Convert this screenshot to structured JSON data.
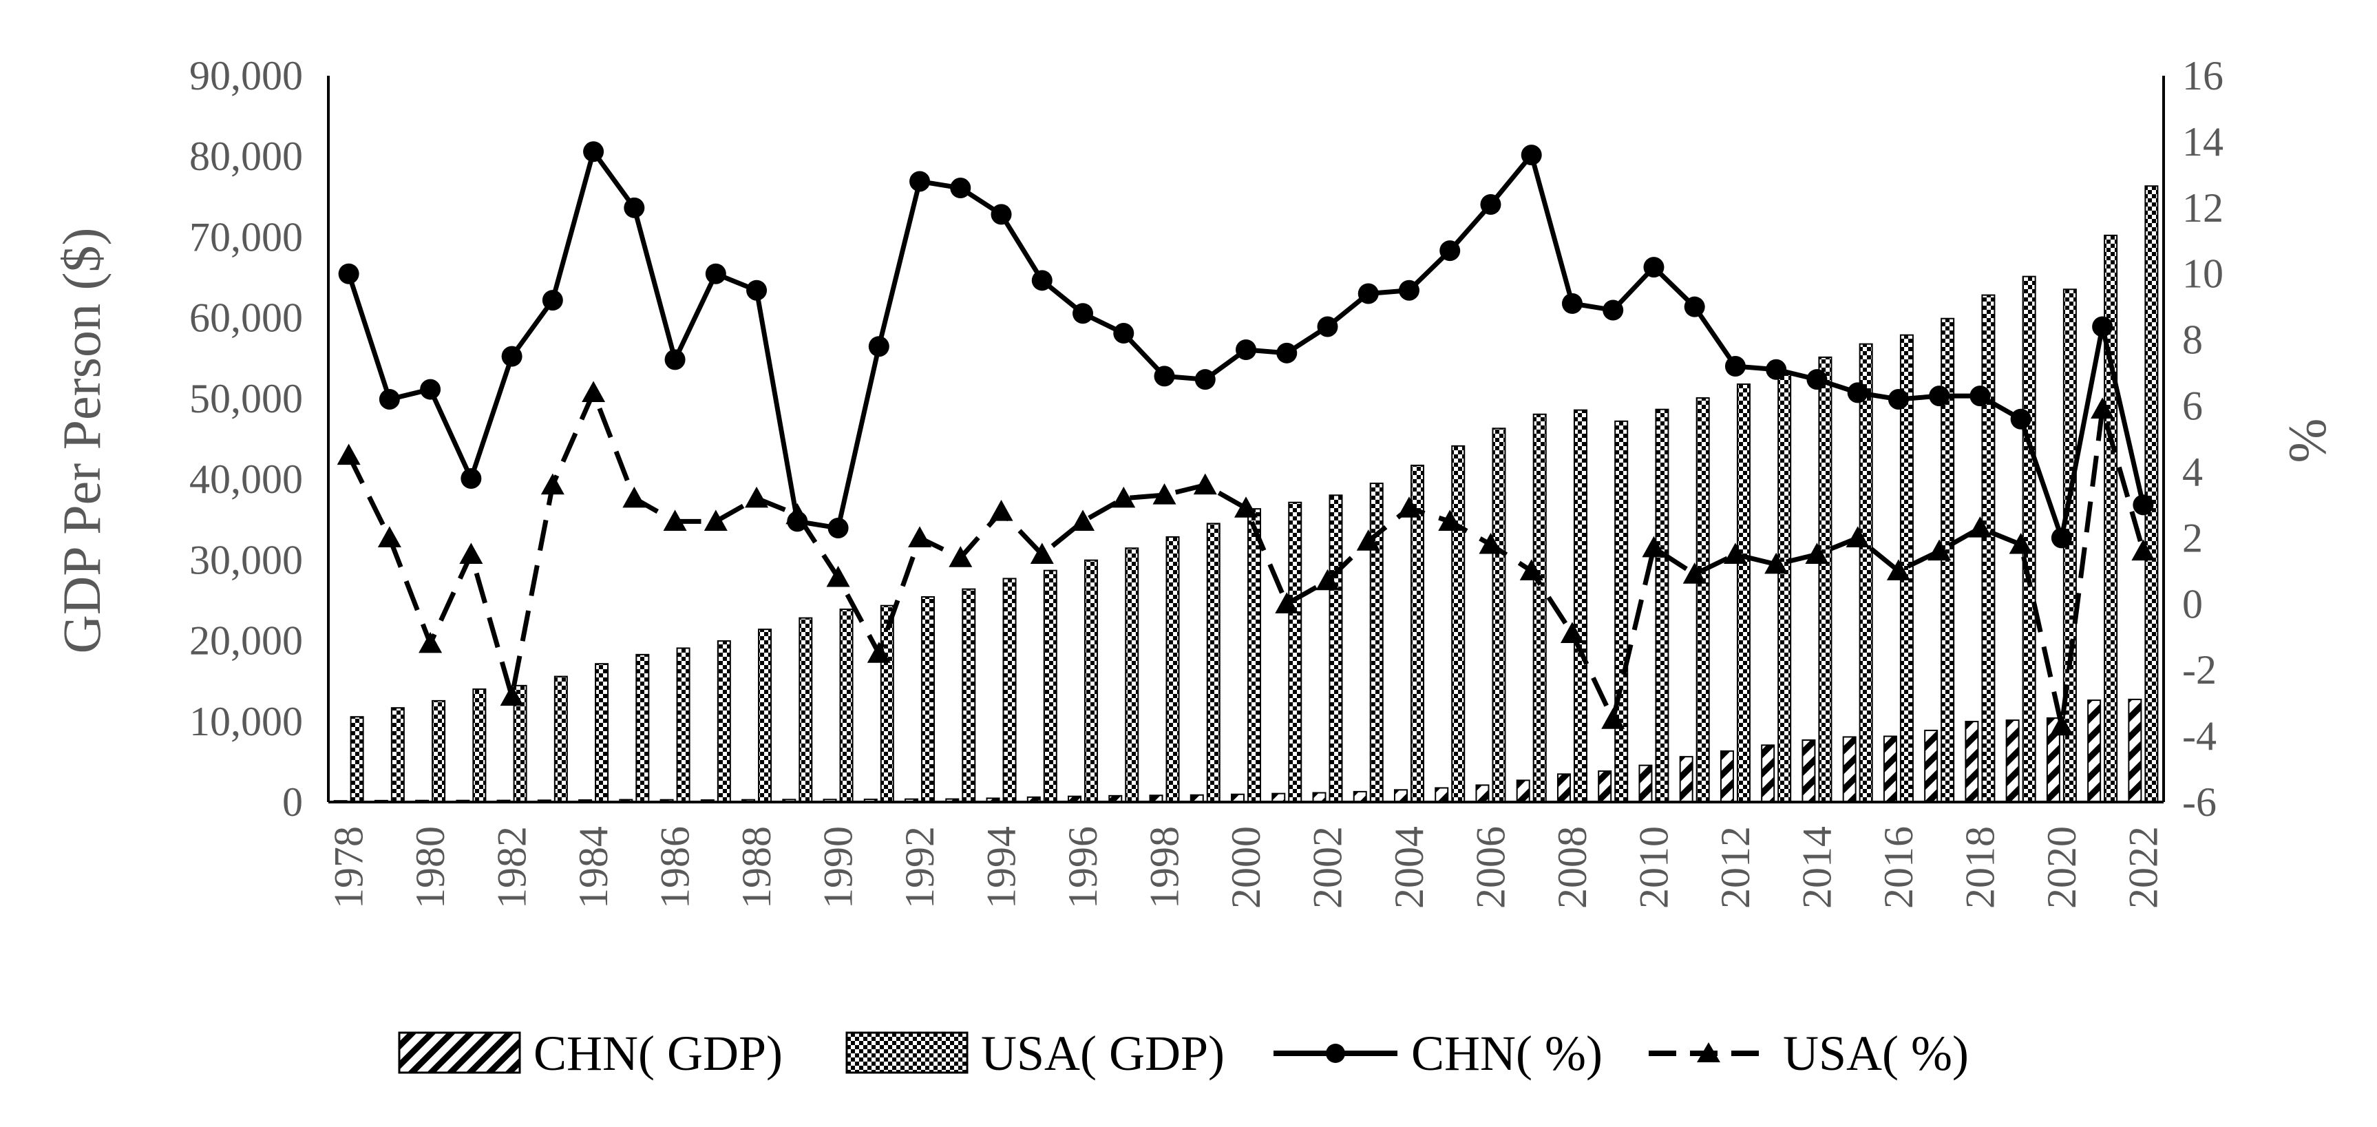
{
  "chart_data": {
    "type": "bar+line",
    "x": [
      1978,
      1979,
      1980,
      1981,
      1982,
      1983,
      1984,
      1985,
      1986,
      1987,
      1988,
      1989,
      1990,
      1991,
      1992,
      1993,
      1994,
      1995,
      1996,
      1997,
      1998,
      1999,
      2000,
      2001,
      2002,
      2003,
      2004,
      2005,
      2006,
      2007,
      2008,
      2009,
      2010,
      2011,
      2012,
      2013,
      2014,
      2015,
      2016,
      2017,
      2018,
      2019,
      2020,
      2021,
      2022
    ],
    "x_tick_labels": [
      "1978",
      "1980",
      "1982",
      "1984",
      "1986",
      "1988",
      "1990",
      "1992",
      "1994",
      "1996",
      "1998",
      "2000",
      "2002",
      "2004",
      "2006",
      "2008",
      "2010",
      "2012",
      "2014",
      "2016",
      "2018",
      "2020",
      "2022"
    ],
    "y_left": {
      "label": "GDP Per Person ($)",
      "range": [
        0,
        90000
      ],
      "tick_labels": [
        "0",
        "10,000",
        "20,000",
        "30,000",
        "40,000",
        "50,000",
        "60,000",
        "70,000",
        "80,000",
        "90,000"
      ]
    },
    "y_right": {
      "label": "%",
      "range": [
        -6,
        16
      ],
      "tick_labels": [
        "-6",
        "-4",
        "-2",
        "0",
        "2",
        "4",
        "6",
        "8",
        "10",
        "12",
        "14",
        "16"
      ]
    },
    "series": [
      {
        "name": "CHN( GDP)",
        "kind": "bar",
        "axis": "left",
        "pattern": "diagonal-stripes",
        "values": [
          156,
          183,
          195,
          197,
          203,
          225,
          251,
          294,
          282,
          252,
          284,
          311,
          318,
          333,
          366,
          377,
          473,
          610,
          709,
          782,
          829,
          873,
          959,
          1053,
          1149,
          1289,
          1509,
          1753,
          2099,
          2694,
          3468,
          3832,
          4550,
          5618,
          6317,
          7051,
          7679,
          8067,
          8148,
          8879,
          9977,
          10144,
          10409,
          12618,
          12720
        ]
      },
      {
        "name": "USA( GDP)",
        "kind": "bar",
        "axis": "left",
        "pattern": "checker",
        "values": [
          10560,
          11670,
          12550,
          13990,
          14430,
          15560,
          17130,
          18270,
          19070,
          19960,
          21400,
          22810,
          23890,
          24340,
          25420,
          26390,
          27690,
          28690,
          29970,
          31460,
          32850,
          34510,
          36330,
          37130,
          38020,
          39490,
          41720,
          44120,
          46300,
          48050,
          48570,
          47190,
          48650,
          50070,
          51780,
          53290,
          55120,
          56760,
          57870,
          59910,
          62820,
          65120,
          63530,
          70220,
          76330
        ]
      },
      {
        "name": "CHN( %)",
        "kind": "line",
        "axis": "right",
        "marker": "circle",
        "values": [
          10.0,
          6.2,
          6.5,
          3.8,
          7.5,
          9.2,
          13.7,
          12.0,
          7.4,
          10.0,
          9.5,
          2.5,
          2.3,
          7.8,
          12.8,
          12.6,
          11.8,
          9.8,
          8.8,
          8.2,
          6.9,
          6.8,
          7.7,
          7.6,
          8.4,
          9.4,
          9.5,
          10.7,
          12.1,
          13.6,
          9.1,
          8.9,
          10.2,
          9.0,
          7.2,
          7.1,
          6.8,
          6.4,
          6.2,
          6.3,
          6.3,
          5.6,
          2.0,
          8.4,
          3.0
        ]
      },
      {
        "name": "USA( %)",
        "kind": "line",
        "axis": "right",
        "marker": "triangle",
        "dash": true,
        "values": [
          4.5,
          2.0,
          -1.2,
          1.5,
          -2.8,
          3.6,
          6.4,
          3.2,
          2.5,
          2.5,
          3.2,
          2.7,
          0.8,
          -1.5,
          2.0,
          1.4,
          2.8,
          1.5,
          2.5,
          3.2,
          3.3,
          3.6,
          2.9,
          0.0,
          0.7,
          1.9,
          2.9,
          2.5,
          1.8,
          1.0,
          -0.9,
          -3.5,
          1.7,
          0.9,
          1.5,
          1.2,
          1.5,
          2.0,
          1.0,
          1.6,
          2.3,
          1.8,
          -3.7,
          5.9,
          1.6
        ]
      }
    ],
    "legend_position": "bottom"
  }
}
